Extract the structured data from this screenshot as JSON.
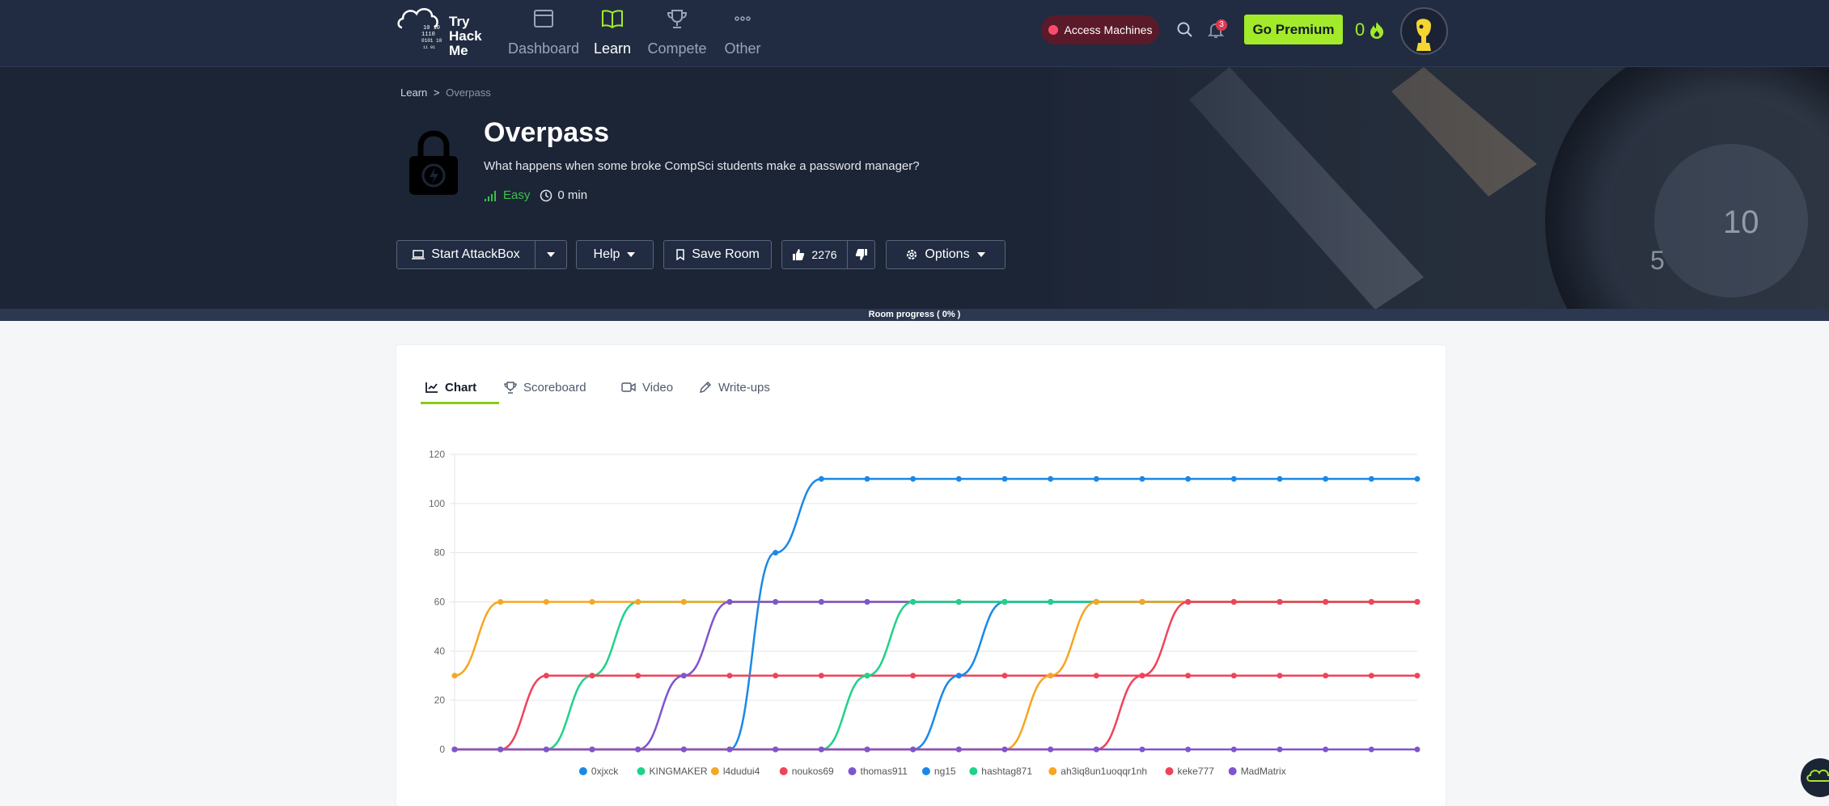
{
  "nav": {
    "logo_text": [
      "Try",
      "Hack",
      "Me"
    ],
    "items": [
      {
        "label": "Dashboard",
        "icon": "dashboard-icon"
      },
      {
        "label": "Learn",
        "icon": "book-icon",
        "active": true
      },
      {
        "label": "Compete",
        "icon": "trophy-icon"
      },
      {
        "label": "Other",
        "icon": "more-icon"
      }
    ],
    "access_machines": "Access Machines",
    "notification_count": "3",
    "go_premium": "Go Premium",
    "streak": "0",
    "accent": "#a3ea2a"
  },
  "hero": {
    "breadcrumb": {
      "root": "Learn",
      "sep": ">",
      "current": "Overpass"
    },
    "title": "Overpass",
    "description": "What happens when some broke CompSci students make a password manager?",
    "difficulty": "Easy",
    "duration": "0 min",
    "buttons": {
      "start_attackbox": "Start AttackBox",
      "help": "Help",
      "save_room": "Save Room",
      "likes": "2276",
      "options": "Options"
    },
    "progress": "Room progress ( 0% )",
    "progress_value": 0
  },
  "tabs": [
    {
      "label": "Chart",
      "icon": "chart-icon",
      "active": true
    },
    {
      "label": "Scoreboard",
      "icon": "trophy-icon"
    },
    {
      "label": "Video",
      "icon": "video-icon"
    },
    {
      "label": "Write-ups",
      "icon": "pencil-icon"
    }
  ],
  "chart_data": {
    "type": "line",
    "ylim": [
      0,
      120
    ],
    "yticks": [
      0,
      20,
      40,
      60,
      80,
      100,
      120
    ],
    "grid": true,
    "legend_position": "bottom",
    "x": [
      0,
      1,
      2,
      3,
      4,
      5,
      6,
      7,
      8,
      9,
      10,
      11,
      12,
      13,
      14,
      15,
      16,
      17,
      18,
      19,
      20,
      21
    ],
    "series": [
      {
        "name": "0xjxck",
        "color": "#1a88e8",
        "values": [
          0,
          0,
          0,
          0,
          0,
          0,
          0,
          80,
          110,
          110,
          110,
          110,
          110,
          110,
          110,
          110,
          110,
          110,
          110,
          110,
          110,
          110
        ]
      },
      {
        "name": "KINGMAKER",
        "color": "#1fd28a",
        "values": [
          0,
          0,
          0,
          30,
          60,
          60,
          60,
          60,
          60,
          60,
          60,
          60,
          60,
          60,
          60,
          60,
          60,
          60,
          60,
          60,
          60,
          60
        ]
      },
      {
        "name": "l4dudui4",
        "color": "#f5a623",
        "values": [
          30,
          60,
          60,
          60,
          60,
          60,
          60,
          60,
          60,
          60,
          60,
          60,
          60,
          60,
          60,
          60,
          60,
          60,
          60,
          60,
          60,
          60
        ]
      },
      {
        "name": "noukos69",
        "color": "#f0435a",
        "values": [
          0,
          0,
          30,
          30,
          30,
          30,
          30,
          30,
          30,
          30,
          30,
          30,
          30,
          30,
          30,
          30,
          30,
          30,
          30,
          30,
          30,
          30
        ]
      },
      {
        "name": "thomas911",
        "color": "#7e55d0",
        "values": [
          0,
          0,
          0,
          0,
          0,
          30,
          60,
          60,
          60,
          60,
          60,
          60,
          60,
          60,
          60,
          60,
          60,
          60,
          60,
          60,
          60,
          60
        ]
      },
      {
        "name": "ng15",
        "color": "#1a88e8",
        "values": [
          0,
          0,
          0,
          0,
          0,
          0,
          0,
          0,
          0,
          0,
          0,
          30,
          60,
          60,
          60,
          60,
          60,
          60,
          60,
          60,
          60,
          60
        ]
      },
      {
        "name": "hashtag871",
        "color": "#1fd28a",
        "values": [
          0,
          0,
          0,
          0,
          0,
          0,
          0,
          0,
          0,
          30,
          60,
          60,
          60,
          60,
          60,
          60,
          60,
          60,
          60,
          60,
          60,
          60
        ]
      },
      {
        "name": "ah3iq8un1uoqqr1nh",
        "color": "#f5a623",
        "values": [
          0,
          0,
          0,
          0,
          0,
          0,
          0,
          0,
          0,
          0,
          0,
          0,
          0,
          30,
          60,
          60,
          60,
          60,
          60,
          60,
          60,
          60
        ]
      },
      {
        "name": "keke777",
        "color": "#f0435a",
        "values": [
          0,
          0,
          0,
          0,
          0,
          0,
          0,
          0,
          0,
          0,
          0,
          0,
          0,
          0,
          0,
          30,
          60,
          60,
          60,
          60,
          60,
          60
        ]
      },
      {
        "name": "MadMatrix",
        "color": "#7e55d0",
        "values": [
          0,
          0,
          0,
          0,
          0,
          0,
          0,
          0,
          0,
          0,
          0,
          0,
          0,
          0,
          0,
          0,
          0,
          0,
          0,
          0,
          0,
          0
        ]
      }
    ]
  }
}
